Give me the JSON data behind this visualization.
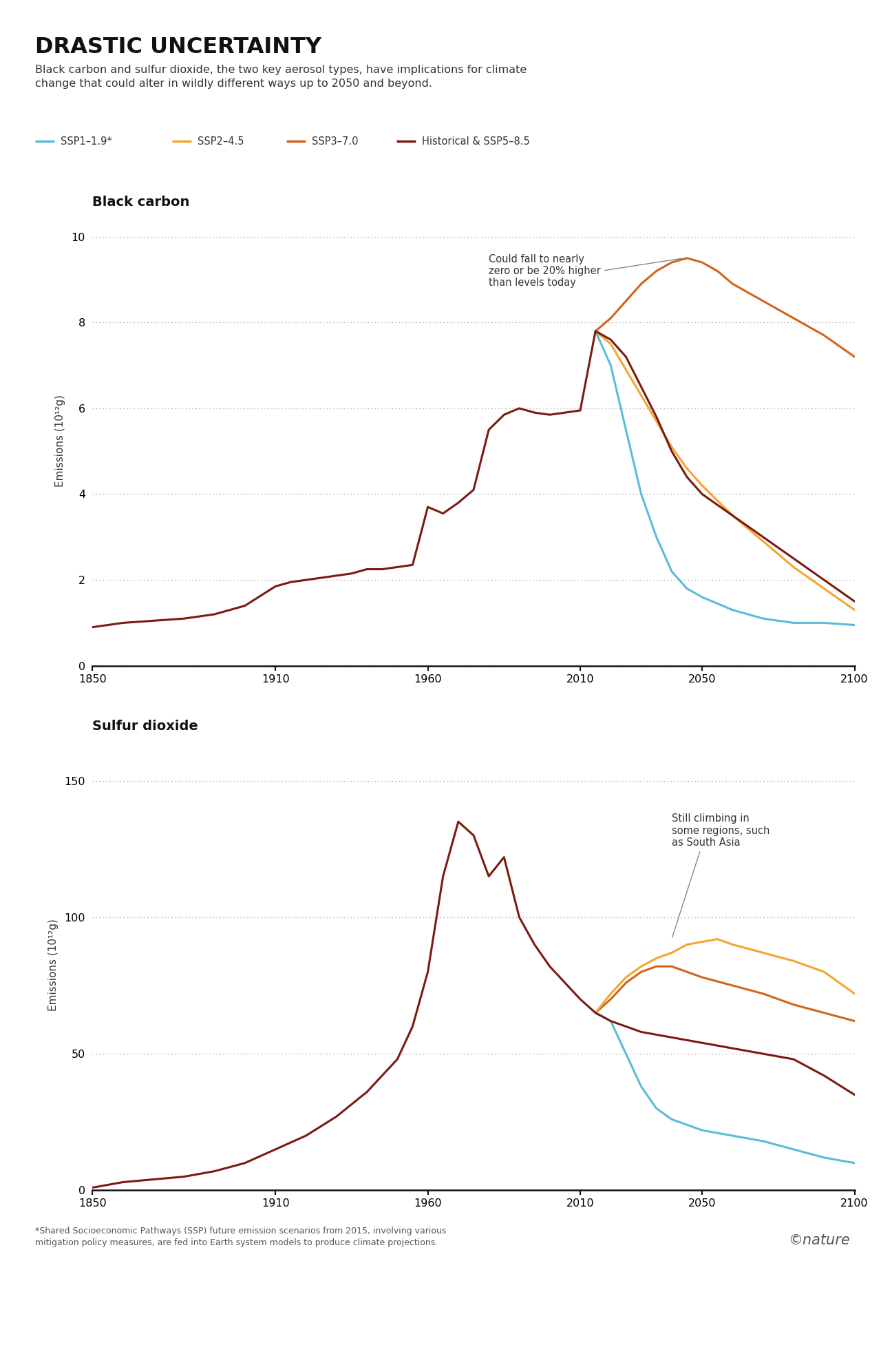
{
  "title": "DRASTIC UNCERTAINTY",
  "subtitle": "Black carbon and sulfur dioxide, the two key aerosol types, have implications for climate\nchange that could alter in wildly different ways up to 2050 and beyond.",
  "footnote": "*Shared Socioeconomic Pathways (SSP) future emission scenarios from 2015, involving various\nmitigation policy measures, are fed into Earth system models to produce climate projections.",
  "nature_credit": "©nature",
  "legend": [
    {
      "label": "SSP1–1.9*",
      "color": "#5bbcd6"
    },
    {
      "label": "SSP2–4.5",
      "color": "#f4a533"
    },
    {
      "label": "SSP3–7.0",
      "color": "#d4631a"
    },
    {
      "label": "Historical & SSP5–8.5",
      "color": "#7b1a10"
    }
  ],
  "bc_panel_title": "Black carbon",
  "so2_panel_title": "Sulfur dioxide",
  "ylabel": "Emissions (10¹²g)",
  "bc_annotation": "Could fall to nearly\nzero or be 20% higher\nthan levels today",
  "so2_annotation": "Still climbing in\nsome regions, such\nas South Asia",
  "colors": {
    "ssp119": "#5bbcd6",
    "ssp245": "#f4a533",
    "ssp370": "#d4631a",
    "hist_ssp585": "#7b1a10"
  },
  "bc_hist_years": [
    1850,
    1860,
    1870,
    1880,
    1890,
    1900,
    1910,
    1915,
    1920,
    1925,
    1930,
    1935,
    1940,
    1945,
    1950,
    1955,
    1960,
    1965,
    1970,
    1975,
    1980,
    1985,
    1990,
    1995,
    2000,
    2005,
    2010,
    2015
  ],
  "bc_hist_values": [
    0.9,
    1.0,
    1.05,
    1.1,
    1.2,
    1.4,
    1.85,
    1.95,
    2.0,
    2.05,
    2.1,
    2.15,
    2.25,
    2.25,
    2.3,
    2.35,
    3.7,
    3.55,
    3.8,
    4.1,
    5.5,
    5.85,
    6.0,
    5.9,
    5.85,
    5.9,
    5.95,
    7.8
  ],
  "bc_ssp585_years": [
    2015,
    2020,
    2025,
    2030,
    2035,
    2040,
    2045,
    2050,
    2060,
    2070,
    2080,
    2090,
    2100
  ],
  "bc_ssp585_values": [
    7.8,
    7.6,
    7.2,
    6.5,
    5.8,
    5.0,
    4.4,
    4.0,
    3.5,
    3.0,
    2.5,
    2.0,
    1.5
  ],
  "bc_ssp370_years": [
    2015,
    2020,
    2025,
    2030,
    2035,
    2040,
    2045,
    2050,
    2055,
    2060,
    2070,
    2080,
    2090,
    2100
  ],
  "bc_ssp370_values": [
    7.8,
    8.1,
    8.5,
    8.9,
    9.2,
    9.4,
    9.5,
    9.4,
    9.2,
    8.9,
    8.5,
    8.1,
    7.7,
    7.2
  ],
  "bc_ssp245_years": [
    2015,
    2020,
    2025,
    2030,
    2035,
    2040,
    2045,
    2050,
    2060,
    2070,
    2080,
    2090,
    2100
  ],
  "bc_ssp245_values": [
    7.8,
    7.5,
    6.9,
    6.3,
    5.7,
    5.1,
    4.6,
    4.2,
    3.5,
    2.9,
    2.3,
    1.8,
    1.3
  ],
  "bc_ssp119_years": [
    2015,
    2020,
    2025,
    2030,
    2035,
    2040,
    2045,
    2050,
    2060,
    2070,
    2080,
    2090,
    2100
  ],
  "bc_ssp119_values": [
    7.8,
    7.0,
    5.5,
    4.0,
    3.0,
    2.2,
    1.8,
    1.6,
    1.3,
    1.1,
    1.0,
    1.0,
    0.95
  ],
  "so2_hist_years": [
    1850,
    1855,
    1860,
    1870,
    1880,
    1890,
    1900,
    1910,
    1920,
    1930,
    1940,
    1950,
    1955,
    1960,
    1965,
    1970,
    1975,
    1980,
    1985,
    1990,
    1995,
    2000,
    2005,
    2010,
    2015
  ],
  "so2_hist_values": [
    1,
    2,
    3,
    4,
    5,
    7,
    10,
    15,
    20,
    27,
    36,
    48,
    60,
    80,
    115,
    135,
    130,
    115,
    122,
    100,
    90,
    82,
    76,
    70,
    65
  ],
  "so2_ssp585_years": [
    2015,
    2020,
    2025,
    2030,
    2035,
    2040,
    2045,
    2050,
    2055,
    2060,
    2070,
    2080,
    2090,
    2100
  ],
  "so2_ssp585_values": [
    65,
    62,
    60,
    58,
    57,
    56,
    55,
    54,
    53,
    52,
    50,
    48,
    42,
    35
  ],
  "so2_ssp370_years": [
    2015,
    2020,
    2025,
    2030,
    2035,
    2040,
    2045,
    2050,
    2060,
    2070,
    2080,
    2090,
    2100
  ],
  "so2_ssp370_values": [
    65,
    70,
    76,
    80,
    82,
    82,
    80,
    78,
    75,
    72,
    68,
    65,
    62
  ],
  "so2_ssp245_years": [
    2015,
    2020,
    2025,
    2030,
    2035,
    2040,
    2045,
    2050,
    2055,
    2060,
    2070,
    2080,
    2090,
    2100
  ],
  "so2_ssp245_values": [
    65,
    72,
    78,
    82,
    85,
    87,
    90,
    91,
    92,
    90,
    87,
    84,
    80,
    72
  ],
  "so2_ssp119_years": [
    2015,
    2020,
    2025,
    2030,
    2035,
    2040,
    2045,
    2050,
    2060,
    2070,
    2080,
    2090,
    2100
  ],
  "so2_ssp119_values": [
    65,
    62,
    50,
    38,
    30,
    26,
    24,
    22,
    20,
    18,
    15,
    12,
    10
  ],
  "background_color": "#ffffff",
  "grid_color": "#999999",
  "line_width": 2.2
}
